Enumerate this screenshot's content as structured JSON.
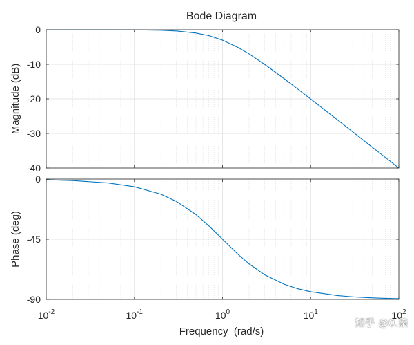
{
  "chart_data": {
    "type": "line",
    "title": "Bode Diagram",
    "xlabel": "Frequency  (rad/s)",
    "xscale": "log",
    "xlim": [
      0.01,
      100
    ],
    "x_tick_labels": [
      {
        "base": "10",
        "exp": "-2"
      },
      {
        "base": "10",
        "exp": "-1"
      },
      {
        "base": "10",
        "exp": "0"
      },
      {
        "base": "10",
        "exp": "1"
      },
      {
        "base": "10",
        "exp": "2"
      }
    ],
    "x_ticks": [
      0.01,
      0.1,
      1,
      10,
      100
    ],
    "grid": true,
    "line_color": "#0072BD",
    "panels": [
      {
        "name": "magnitude",
        "ylabel": "Magnitude (dB)",
        "ylim": [
          -40,
          0
        ],
        "y_ticks": [
          0,
          -10,
          -20,
          -30,
          -40
        ],
        "y_tick_labels": [
          "0",
          "-10",
          "-20",
          "-30",
          "-40"
        ],
        "series": [
          {
            "x": [
              0.01,
              0.02,
              0.05,
              0.1,
              0.2,
              0.3,
              0.5,
              0.7,
              1,
              1.5,
              2,
              3,
              5,
              7,
              10,
              20,
              30,
              50,
              70,
              100
            ],
            "values": [
              0.0,
              0.0,
              -0.01,
              -0.04,
              -0.17,
              -0.37,
              -0.97,
              -1.7,
              -3.01,
              -5.12,
              -6.99,
              -10.0,
              -14.15,
              -17.0,
              -20.04,
              -26.02,
              -29.54,
              -33.98,
              -36.9,
              -40.0
            ]
          }
        ]
      },
      {
        "name": "phase",
        "ylabel": "Phase (deg)",
        "ylim": [
          -90,
          0
        ],
        "y_ticks": [
          0,
          -45,
          -90
        ],
        "y_tick_labels": [
          "0",
          "-45",
          "-90"
        ],
        "series": [
          {
            "x": [
              0.01,
              0.02,
              0.05,
              0.1,
              0.2,
              0.3,
              0.5,
              0.7,
              1,
              1.5,
              2,
              3,
              5,
              7,
              10,
              20,
              30,
              50,
              70,
              100
            ],
            "values": [
              -0.57,
              -1.15,
              -2.86,
              -5.71,
              -11.31,
              -16.7,
              -26.57,
              -34.99,
              -45.0,
              -56.31,
              -63.43,
              -71.57,
              -78.69,
              -81.87,
              -84.29,
              -87.14,
              -88.09,
              -88.85,
              -89.18,
              -89.43
            ]
          }
        ]
      }
    ]
  },
  "watermark": "知乎 @0.柒"
}
